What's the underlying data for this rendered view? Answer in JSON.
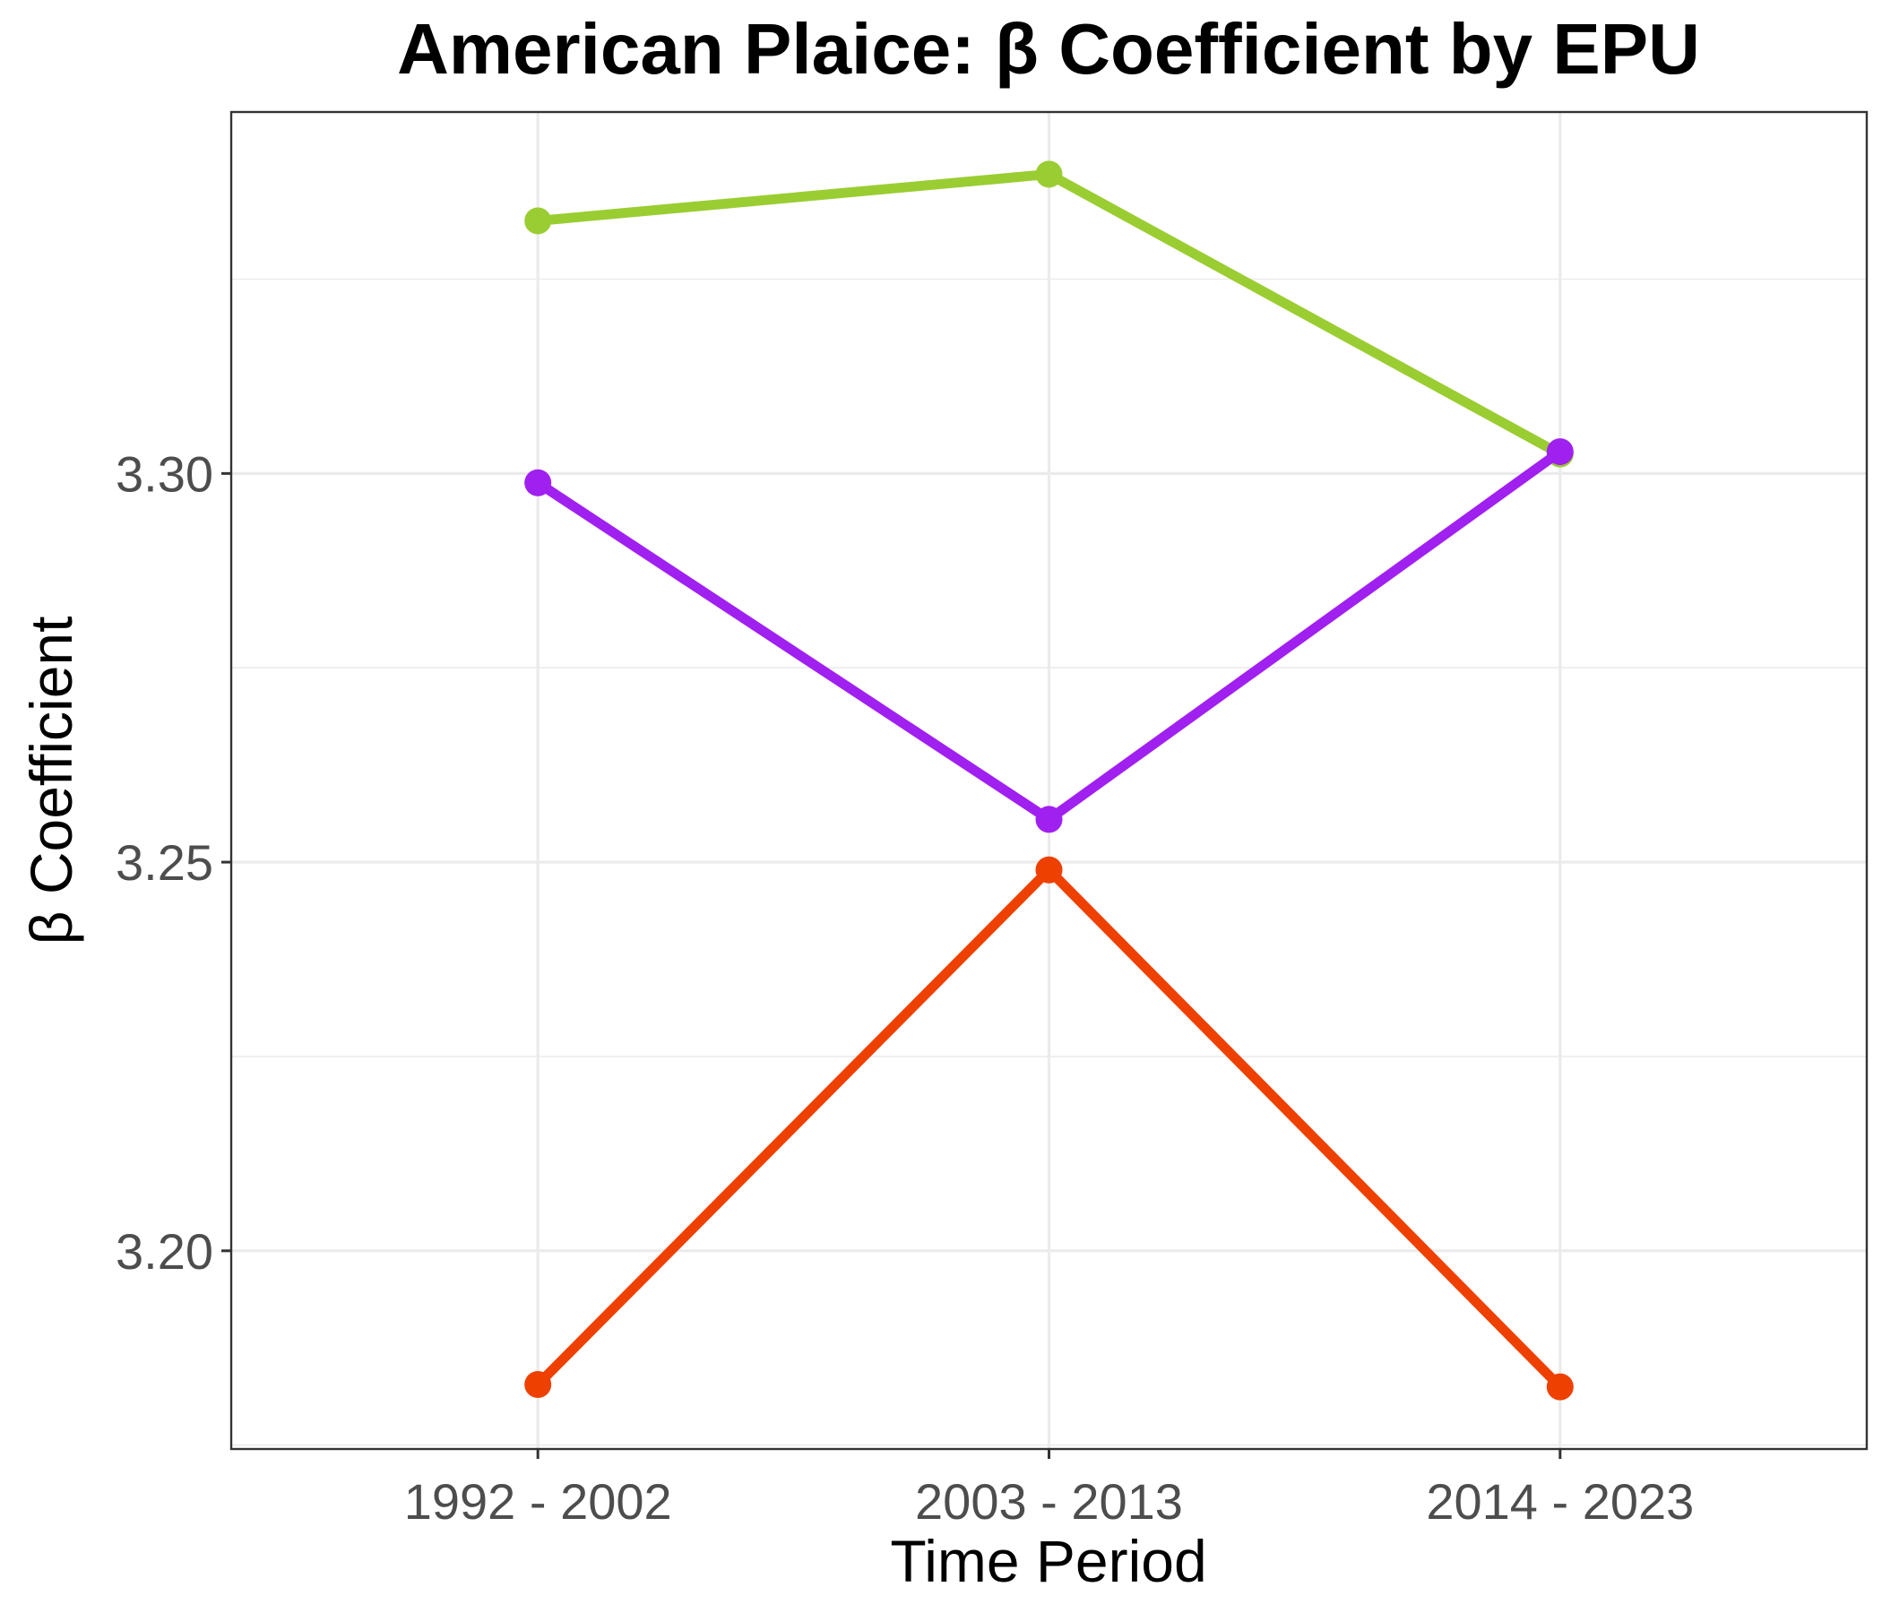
{
  "chart_data": {
    "type": "line",
    "title": "American Plaice: β Coefficient by EPU",
    "xlabel": "Time Period",
    "ylabel": "β Coefficient",
    "categories": [
      "1992 - 2002",
      "2003 - 2013",
      "2014 - 2023"
    ],
    "ylim": [
      3.1745,
      3.3465
    ],
    "yticks": [
      3.2,
      3.25,
      3.3
    ],
    "ytick_labels": [
      "3.20",
      "3.25",
      "3.30"
    ],
    "grid": true,
    "legend": "none",
    "series": [
      {
        "color": "#9ACD32",
        "values": [
          3.3325,
          3.3385,
          3.3025
        ]
      },
      {
        "color": "#A020F0",
        "values": [
          3.2988,
          3.2555,
          3.3028
        ]
      },
      {
        "color": "#EE4000",
        "values": [
          3.1828,
          3.249,
          3.1825
        ]
      }
    ]
  }
}
